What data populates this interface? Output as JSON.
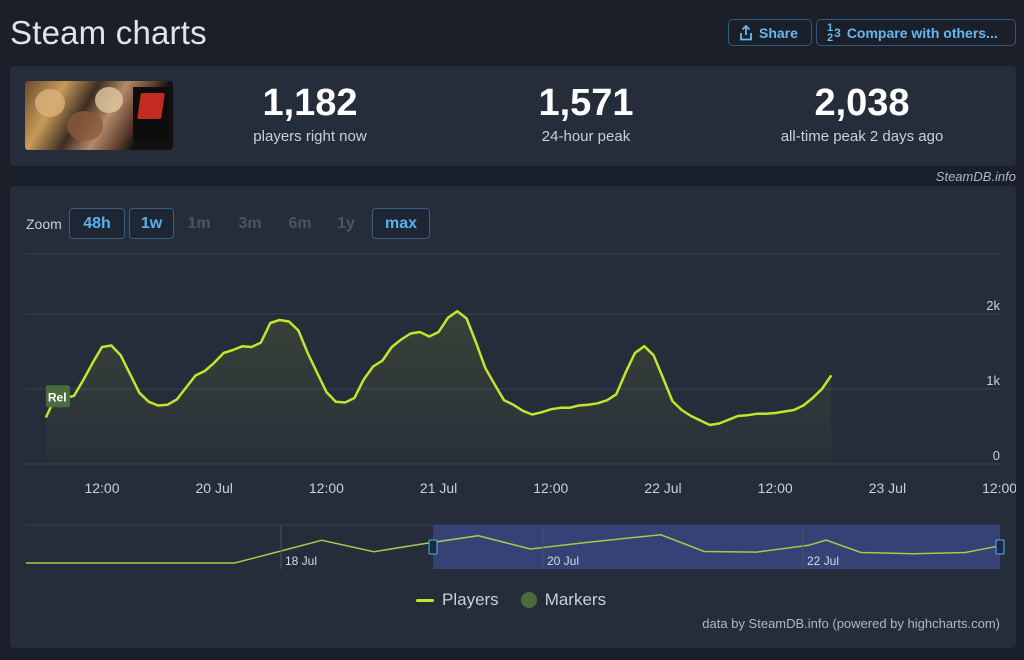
{
  "page": {
    "title": "Steam charts",
    "share_label": "Share",
    "compare_label": "Compare with others...",
    "compare_glyph_top": "1",
    "compare_glyph_mid": "3",
    "compare_glyph_bot": "2"
  },
  "stats": {
    "current": {
      "value": "1,182",
      "label": "players right now"
    },
    "peak24": {
      "value": "1,571",
      "label": "24-hour peak"
    },
    "alltime": {
      "value": "2,038",
      "label": "all-time peak 2 days ago"
    }
  },
  "credits": {
    "top": "SteamDB.info",
    "bottom": "data by SteamDB.info (powered by highcharts.com)"
  },
  "zoom": {
    "label": "Zoom",
    "buttons": [
      {
        "label": "48h",
        "active": true
      },
      {
        "label": "1w",
        "active": true
      },
      {
        "label": "1m",
        "active": false
      },
      {
        "label": "3m",
        "active": false
      },
      {
        "label": "6m",
        "active": false
      },
      {
        "label": "1y",
        "active": false
      },
      {
        "label": "max",
        "active": true
      }
    ]
  },
  "legend": {
    "players": "Players",
    "markers": "Markers"
  },
  "colors": {
    "series": "#c3e52a",
    "marker": "#4a6b3e",
    "accent": "#57b2ee"
  },
  "chart_data": {
    "type": "line",
    "series": [
      {
        "name": "Players",
        "values": [
          [
            "2024-07-19 06:00",
            620
          ],
          [
            "2024-07-19 07:00",
            890
          ],
          [
            "2024-07-19 08:00",
            880
          ],
          [
            "2024-07-19 09:00",
            910
          ],
          [
            "2024-07-19 10:00",
            1120
          ],
          [
            "2024-07-19 11:00",
            1350
          ],
          [
            "2024-07-19 12:00",
            1560
          ],
          [
            "2024-07-19 13:00",
            1580
          ],
          [
            "2024-07-19 14:00",
            1450
          ],
          [
            "2024-07-19 15:00",
            1200
          ],
          [
            "2024-07-19 16:00",
            950
          ],
          [
            "2024-07-19 17:00",
            830
          ],
          [
            "2024-07-19 18:00",
            780
          ],
          [
            "2024-07-19 19:00",
            790
          ],
          [
            "2024-07-19 20:00",
            860
          ],
          [
            "2024-07-19 21:00",
            1020
          ],
          [
            "2024-07-19 22:00",
            1180
          ],
          [
            "2024-07-19 23:00",
            1240
          ],
          [
            "2024-07-20 00:00",
            1350
          ],
          [
            "2024-07-20 01:00",
            1480
          ],
          [
            "2024-07-20 02:00",
            1520
          ],
          [
            "2024-07-20 03:00",
            1570
          ],
          [
            "2024-07-20 04:00",
            1560
          ],
          [
            "2024-07-20 05:00",
            1620
          ],
          [
            "2024-07-20 06:00",
            1880
          ],
          [
            "2024-07-20 07:00",
            1920
          ],
          [
            "2024-07-20 08:00",
            1900
          ],
          [
            "2024-07-20 09:00",
            1780
          ],
          [
            "2024-07-20 10:00",
            1480
          ],
          [
            "2024-07-20 11:00",
            1220
          ],
          [
            "2024-07-20 12:00",
            960
          ],
          [
            "2024-07-20 13:00",
            830
          ],
          [
            "2024-07-20 14:00",
            820
          ],
          [
            "2024-07-20 15:00",
            880
          ],
          [
            "2024-07-20 16:00",
            1130
          ],
          [
            "2024-07-20 17:00",
            1300
          ],
          [
            "2024-07-20 18:00",
            1380
          ],
          [
            "2024-07-20 19:00",
            1560
          ],
          [
            "2024-07-20 20:00",
            1660
          ],
          [
            "2024-07-20 21:00",
            1740
          ],
          [
            "2024-07-20 22:00",
            1760
          ],
          [
            "2024-07-20 23:00",
            1700
          ],
          [
            "2024-07-21 00:00",
            1760
          ],
          [
            "2024-07-21 01:00",
            1950
          ],
          [
            "2024-07-21 02:00",
            2038
          ],
          [
            "2024-07-21 03:00",
            1940
          ],
          [
            "2024-07-21 04:00",
            1620
          ],
          [
            "2024-07-21 05:00",
            1280
          ],
          [
            "2024-07-21 06:00",
            1060
          ],
          [
            "2024-07-21 07:00",
            850
          ],
          [
            "2024-07-21 08:00",
            790
          ],
          [
            "2024-07-21 09:00",
            710
          ],
          [
            "2024-07-21 10:00",
            660
          ],
          [
            "2024-07-21 11:00",
            690
          ],
          [
            "2024-07-21 12:00",
            730
          ],
          [
            "2024-07-21 13:00",
            750
          ],
          [
            "2024-07-21 14:00",
            750
          ],
          [
            "2024-07-21 15:00",
            780
          ],
          [
            "2024-07-21 16:00",
            790
          ],
          [
            "2024-07-21 17:00",
            810
          ],
          [
            "2024-07-21 18:00",
            850
          ],
          [
            "2024-07-21 19:00",
            930
          ],
          [
            "2024-07-21 20:00",
            1220
          ],
          [
            "2024-07-21 21:00",
            1480
          ],
          [
            "2024-07-21 22:00",
            1571
          ],
          [
            "2024-07-21 23:00",
            1450
          ],
          [
            "2024-07-22 00:00",
            1150
          ],
          [
            "2024-07-22 01:00",
            840
          ],
          [
            "2024-07-22 02:00",
            720
          ],
          [
            "2024-07-22 03:00",
            640
          ],
          [
            "2024-07-22 04:00",
            580
          ],
          [
            "2024-07-22 05:00",
            520
          ],
          [
            "2024-07-22 06:00",
            540
          ],
          [
            "2024-07-22 07:00",
            590
          ],
          [
            "2024-07-22 08:00",
            640
          ],
          [
            "2024-07-22 09:00",
            650
          ],
          [
            "2024-07-22 10:00",
            670
          ],
          [
            "2024-07-22 11:00",
            670
          ],
          [
            "2024-07-22 12:00",
            680
          ],
          [
            "2024-07-22 13:00",
            700
          ],
          [
            "2024-07-22 14:00",
            720
          ],
          [
            "2024-07-22 15:00",
            780
          ],
          [
            "2024-07-22 16:00",
            880
          ],
          [
            "2024-07-22 17:00",
            1000
          ],
          [
            "2024-07-22 18:00",
            1182
          ]
        ]
      }
    ],
    "x_tick_labels": [
      "12:00",
      "20 Jul",
      "12:00",
      "21 Jul",
      "12:00",
      "22 Jul",
      "12:00",
      "23 Jul",
      "12:00"
    ],
    "y_tick_labels": [
      "2k",
      "1k",
      "0"
    ],
    "ylim": [
      0,
      2800
    ],
    "grid": true,
    "marker_label": "Rel",
    "navigator_labels": [
      "18 Jul",
      "20 Jul",
      "22 Jul"
    ],
    "navigator_values": [
      [
        "2024-07-18 02:00",
        0
      ],
      [
        "2024-07-18 14:00",
        0
      ],
      [
        "2024-07-19 02:00",
        0
      ],
      [
        "2024-07-19 06:00",
        620
      ],
      [
        "2024-07-19 12:00",
        1560
      ],
      [
        "2024-07-19 18:00",
        780
      ],
      [
        "2024-07-20 00:00",
        1350
      ],
      [
        "2024-07-20 06:00",
        1880
      ],
      [
        "2024-07-20 12:00",
        960
      ],
      [
        "2024-07-20 18:00",
        1380
      ],
      [
        "2024-07-21 00:00",
        1760
      ],
      [
        "2024-07-21 03:00",
        1940
      ],
      [
        "2024-07-21 08:00",
        790
      ],
      [
        "2024-07-21 14:00",
        750
      ],
      [
        "2024-07-21 20:00",
        1220
      ],
      [
        "2024-07-21 22:00",
        1571
      ],
      [
        "2024-07-22 02:00",
        720
      ],
      [
        "2024-07-22 08:00",
        640
      ],
      [
        "2024-07-22 14:00",
        720
      ],
      [
        "2024-07-22 18:00",
        1182
      ]
    ]
  }
}
